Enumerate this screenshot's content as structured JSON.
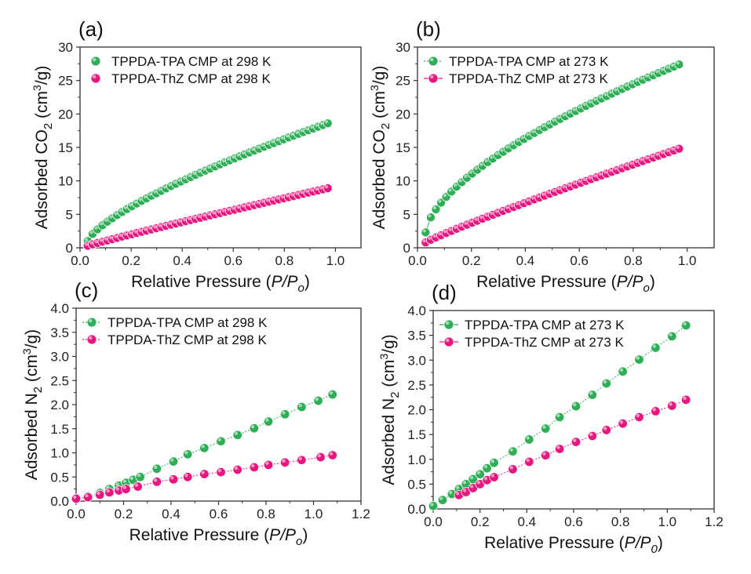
{
  "colors": {
    "series_1": "#2fae57",
    "series_2": "#e8177f",
    "axis": "#333333"
  },
  "chart_data": [
    {
      "id": "a",
      "panel_label": "(a)",
      "type": "scatter",
      "xlabel": "Relative Pressure (P/Po)",
      "ylabel": "Adsorbed CO2 (cm3/g)",
      "xlim": [
        0,
        1.1
      ],
      "ylim": [
        0,
        30
      ],
      "xticks": [
        "0.0",
        "0.2",
        "0.4",
        "0.6",
        "0.8",
        "1.0"
      ],
      "xtick_values": [
        0,
        0.2,
        0.4,
        0.6,
        0.8,
        1.0
      ],
      "yticks": [
        "0",
        "5",
        "10",
        "15",
        "20",
        "25",
        "30"
      ],
      "ytick_values": [
        0,
        5,
        10,
        15,
        20,
        25,
        30
      ],
      "legend": [
        "TPPDA-TPA CMP at 298 K",
        "TPPDA-ThZ CMP at 298 K"
      ],
      "legend_lines": false,
      "series": [
        {
          "name": "TPPDA-TPA CMP at 298 K",
          "x0": 0.03,
          "x1": 0.97,
          "y0": 1.0,
          "y1": 18.6,
          "shape": 0.72,
          "count": 50
        },
        {
          "name": "TPPDA-ThZ CMP at 298 K",
          "x0": 0.03,
          "x1": 0.97,
          "y0": 0.3,
          "y1": 8.9,
          "shape": 0.95,
          "count": 50
        }
      ]
    },
    {
      "id": "b",
      "panel_label": "(b)",
      "type": "line",
      "xlabel": "Relative Pressure (P/Po)",
      "ylabel": "Adsorbed CO2 (cm3/g)",
      "xlim": [
        0,
        1.1
      ],
      "ylim": [
        0,
        30
      ],
      "xticks": [
        "0.0",
        "0.2",
        "0.4",
        "0.6",
        "0.8",
        "1.0"
      ],
      "xtick_values": [
        0,
        0.2,
        0.4,
        0.6,
        0.8,
        1.0
      ],
      "yticks": [
        "0",
        "5",
        "10",
        "15",
        "20",
        "25",
        "30"
      ],
      "ytick_values": [
        0,
        5,
        10,
        15,
        20,
        25,
        30
      ],
      "legend": [
        "TPPDA-TPA CMP at 273 K",
        "TPPDA-ThZ CMP at 273 K"
      ],
      "legend_lines": true,
      "series": [
        {
          "name": "TPPDA-TPA CMP at 273 K",
          "x0": 0.03,
          "x1": 0.97,
          "y0": 2.3,
          "y1": 27.4,
          "shape": 0.62,
          "count": 50
        },
        {
          "name": "TPPDA-ThZ CMP at 273 K",
          "x0": 0.03,
          "x1": 0.97,
          "y0": 0.8,
          "y1": 14.8,
          "shape": 0.92,
          "count": 50
        }
      ]
    },
    {
      "id": "c",
      "panel_label": "(c)",
      "type": "line",
      "xlabel": "Relative Pressure (P/Po)",
      "ylabel": "Adsorbed N2 (cm3/g)",
      "xlim": [
        0,
        1.2
      ],
      "ylim": [
        0,
        4.0
      ],
      "xticks": [
        "0.0",
        "0.2",
        "0.4",
        "0.6",
        "0.8",
        "1.0",
        "1.2"
      ],
      "xtick_values": [
        0,
        0.2,
        0.4,
        0.6,
        0.8,
        1.0,
        1.2
      ],
      "yticks": [
        "0.0",
        "0.5",
        "1.0",
        "1.5",
        "2.0",
        "2.5",
        "3.0",
        "3.5",
        "4.0"
      ],
      "ytick_values": [
        0,
        0.5,
        1.0,
        1.5,
        2.0,
        2.5,
        3.0,
        3.5,
        4.0
      ],
      "legend": [
        "TPPDA-TPA CMP at 298 K",
        "TPPDA-ThZ CMP at 298 K"
      ],
      "legend_lines": true,
      "series": [
        {
          "name": "TPPDA-TPA CMP at 298 K",
          "x": [
            0.0,
            0.05,
            0.1,
            0.14,
            0.18,
            0.21,
            0.24,
            0.27,
            0.34,
            0.41,
            0.47,
            0.54,
            0.61,
            0.68,
            0.75,
            0.81,
            0.88,
            0.95,
            1.02,
            1.08
          ],
          "y": [
            0.05,
            0.1,
            0.17,
            0.25,
            0.32,
            0.38,
            0.44,
            0.5,
            0.67,
            0.82,
            0.97,
            1.1,
            1.24,
            1.37,
            1.51,
            1.65,
            1.8,
            1.95,
            2.08,
            2.21
          ]
        },
        {
          "name": "TPPDA-ThZ CMP at 298 K",
          "x": [
            0.0,
            0.05,
            0.1,
            0.14,
            0.18,
            0.21,
            0.26,
            0.34,
            0.41,
            0.47,
            0.54,
            0.61,
            0.68,
            0.75,
            0.81,
            0.88,
            0.95,
            1.03,
            1.08
          ],
          "y": [
            0.05,
            0.08,
            0.13,
            0.18,
            0.22,
            0.25,
            0.3,
            0.4,
            0.45,
            0.5,
            0.56,
            0.6,
            0.65,
            0.7,
            0.75,
            0.8,
            0.85,
            0.91,
            0.95
          ]
        }
      ]
    },
    {
      "id": "d",
      "panel_label": "(d)",
      "type": "line",
      "xlabel": "Relative Pressure (P/P0)",
      "ylabel": "Adsorbed N2 (cm3/g)",
      "xlim": [
        0,
        1.2
      ],
      "ylim": [
        0,
        4.0
      ],
      "xticks": [
        "0.0",
        "0.2",
        "0.4",
        "0.6",
        "0.8",
        "1.0",
        "1.2"
      ],
      "xtick_values": [
        0,
        0.2,
        0.4,
        0.6,
        0.8,
        1.0,
        1.2
      ],
      "yticks": [
        "0.0",
        "0.5",
        "1.0",
        "1.5",
        "2.0",
        "2.5",
        "3.0",
        "3.5",
        "4.0"
      ],
      "ytick_values": [
        0,
        0.5,
        1.0,
        1.5,
        2.0,
        2.5,
        3.0,
        3.5,
        4.0
      ],
      "legend": [
        "TPPDA-TPA CMP at 273 K",
        "TPPDA-ThZ CMP at 273 K"
      ],
      "legend_lines": true,
      "series": [
        {
          "name": "TPPDA-TPA CMP at 273 K",
          "x": [
            0.0,
            0.04,
            0.08,
            0.11,
            0.14,
            0.17,
            0.2,
            0.23,
            0.26,
            0.34,
            0.41,
            0.48,
            0.54,
            0.61,
            0.68,
            0.74,
            0.81,
            0.88,
            0.95,
            1.02,
            1.08
          ],
          "y": [
            0.06,
            0.18,
            0.3,
            0.4,
            0.5,
            0.6,
            0.7,
            0.82,
            0.93,
            1.16,
            1.4,
            1.62,
            1.85,
            2.07,
            2.3,
            2.53,
            2.77,
            3.01,
            3.25,
            3.48,
            3.7
          ]
        },
        {
          "name": "TPPDA-ThZ CMP at 273 K",
          "x": [
            0.11,
            0.14,
            0.17,
            0.2,
            0.23,
            0.26,
            0.34,
            0.41,
            0.48,
            0.54,
            0.61,
            0.68,
            0.74,
            0.81,
            0.88,
            0.95,
            1.02,
            1.08
          ],
          "y": [
            0.28,
            0.34,
            0.42,
            0.5,
            0.58,
            0.64,
            0.8,
            0.95,
            1.08,
            1.21,
            1.35,
            1.47,
            1.59,
            1.72,
            1.85,
            1.97,
            2.08,
            2.2
          ]
        }
      ]
    }
  ]
}
